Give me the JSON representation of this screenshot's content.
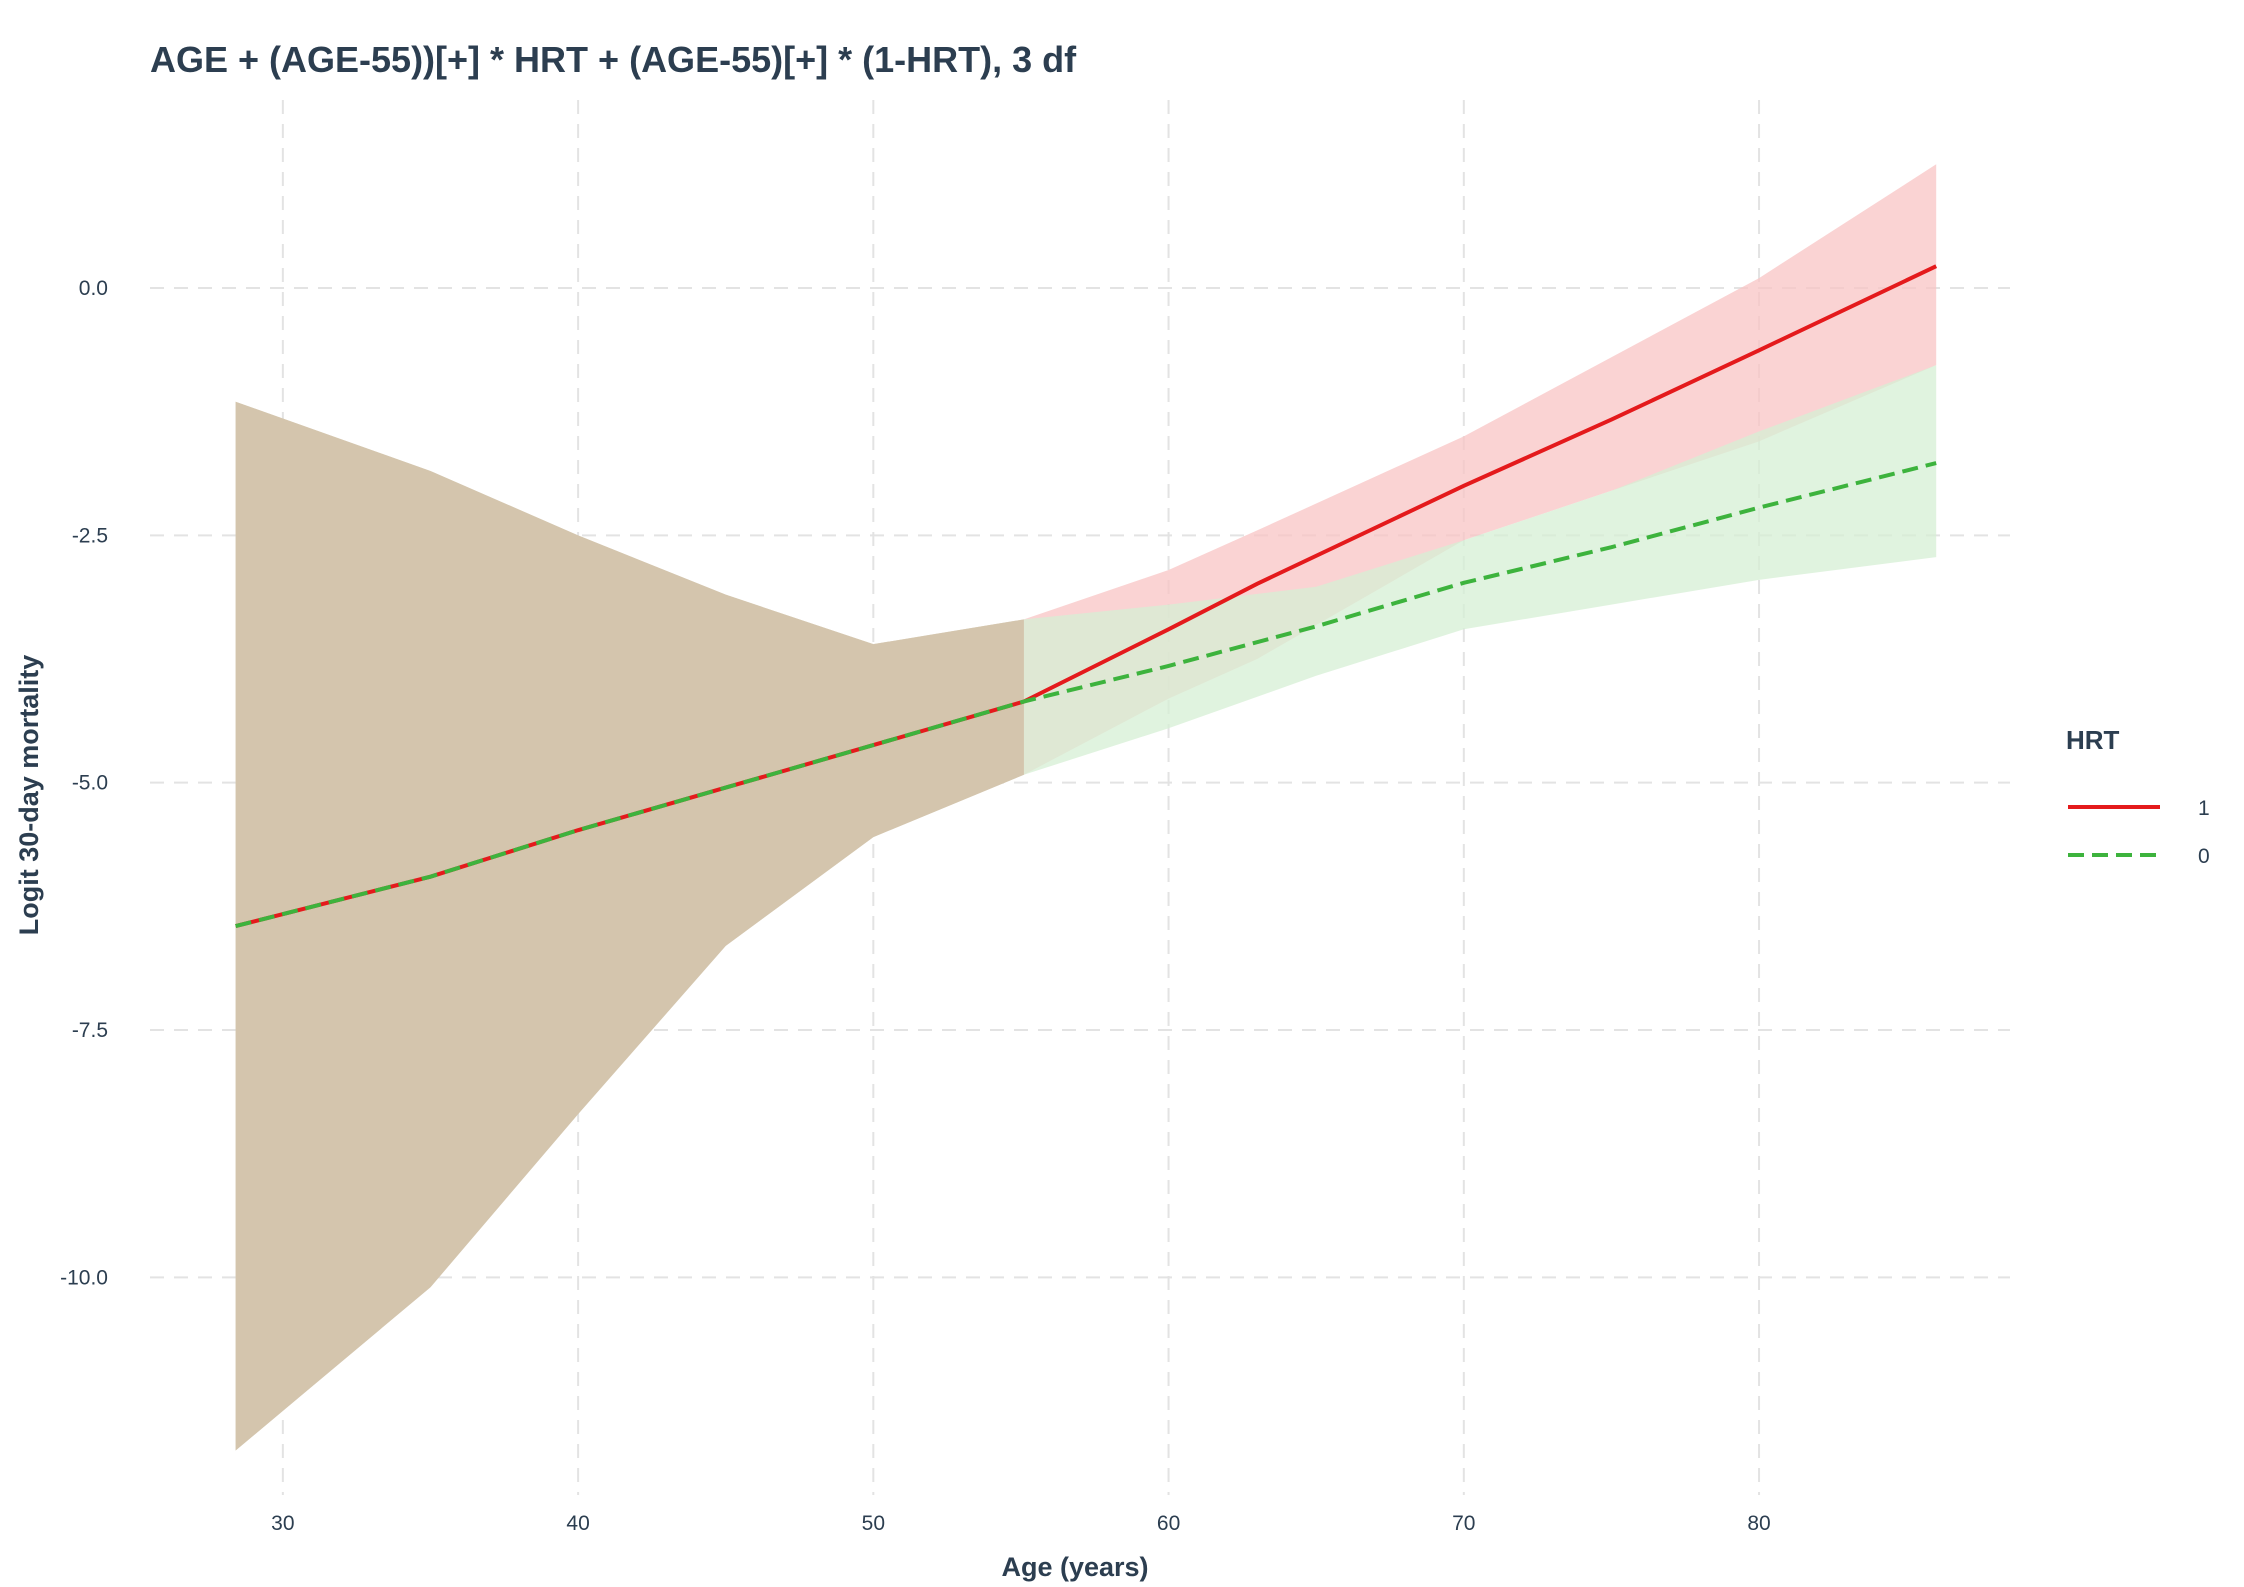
{
  "chart_data": {
    "type": "line",
    "title": "AGE + (AGE-55))[+] * HRT + (AGE-55)[+] * (1-HRT), 3 df",
    "xlabel": "Age (years)",
    "ylabel": "Logit 30-day mortality",
    "xlim": [
      25.5,
      88.5
    ],
    "ylim": [
      -12.2,
      1.9
    ],
    "x_ticks": [
      30,
      40,
      50,
      60,
      70,
      80
    ],
    "x_tick_labels": [
      "30",
      "40",
      "50",
      "60",
      "70",
      "80"
    ],
    "y_ticks": [
      0.0,
      -2.5,
      -5.0,
      -7.5,
      -10.0
    ],
    "y_tick_labels": [
      "0.0",
      "-2.5",
      "-5.0",
      "-7.5",
      "-10.0"
    ],
    "grid": true,
    "legend": {
      "title": "HRT",
      "placement": "right"
    },
    "series": [
      {
        "name": "1",
        "color": "#e41a1c",
        "dash": "solid",
        "ribbon_color": "#f8c4c4",
        "x": [
          28.4,
          35,
          40,
          45,
          50,
          55.1,
          60,
          63,
          70,
          75,
          80,
          86
        ],
        "y": [
          -6.45,
          -5.95,
          -5.48,
          -5.05,
          -4.62,
          -4.18,
          -3.45,
          -2.99,
          -2.0,
          -1.33,
          -0.63,
          0.22
        ],
        "upper": [
          -1.15,
          -1.85,
          -2.5,
          -3.1,
          -3.6,
          -3.35,
          -2.85,
          -2.45,
          -1.5,
          -0.7,
          0.1,
          1.25
        ],
        "lower": [
          -11.75,
          -10.1,
          -8.35,
          -6.65,
          -5.55,
          -4.92,
          -4.15,
          -3.75,
          -2.55,
          -2.05,
          -1.55,
          -0.78
        ]
      },
      {
        "name": "0",
        "color": "#3db33d",
        "dash": "dashed",
        "ribbon_color": "#d6efd4",
        "x": [
          28.4,
          35,
          40,
          45,
          50,
          55.1,
          60,
          65,
          70,
          75,
          80,
          86
        ],
        "y": [
          -6.45,
          -5.95,
          -5.48,
          -5.05,
          -4.62,
          -4.18,
          -3.82,
          -3.42,
          -2.98,
          -2.62,
          -2.22,
          -1.77
        ],
        "upper": [
          -1.15,
          -1.85,
          -2.5,
          -3.1,
          -3.6,
          -3.35,
          -3.2,
          -3.02,
          -2.55,
          -2.05,
          -1.45,
          -0.78
        ],
        "lower": [
          -11.75,
          -10.1,
          -8.35,
          -6.65,
          -5.55,
          -4.92,
          -4.45,
          -3.92,
          -3.45,
          -3.2,
          -2.95,
          -2.72
        ]
      }
    ]
  }
}
